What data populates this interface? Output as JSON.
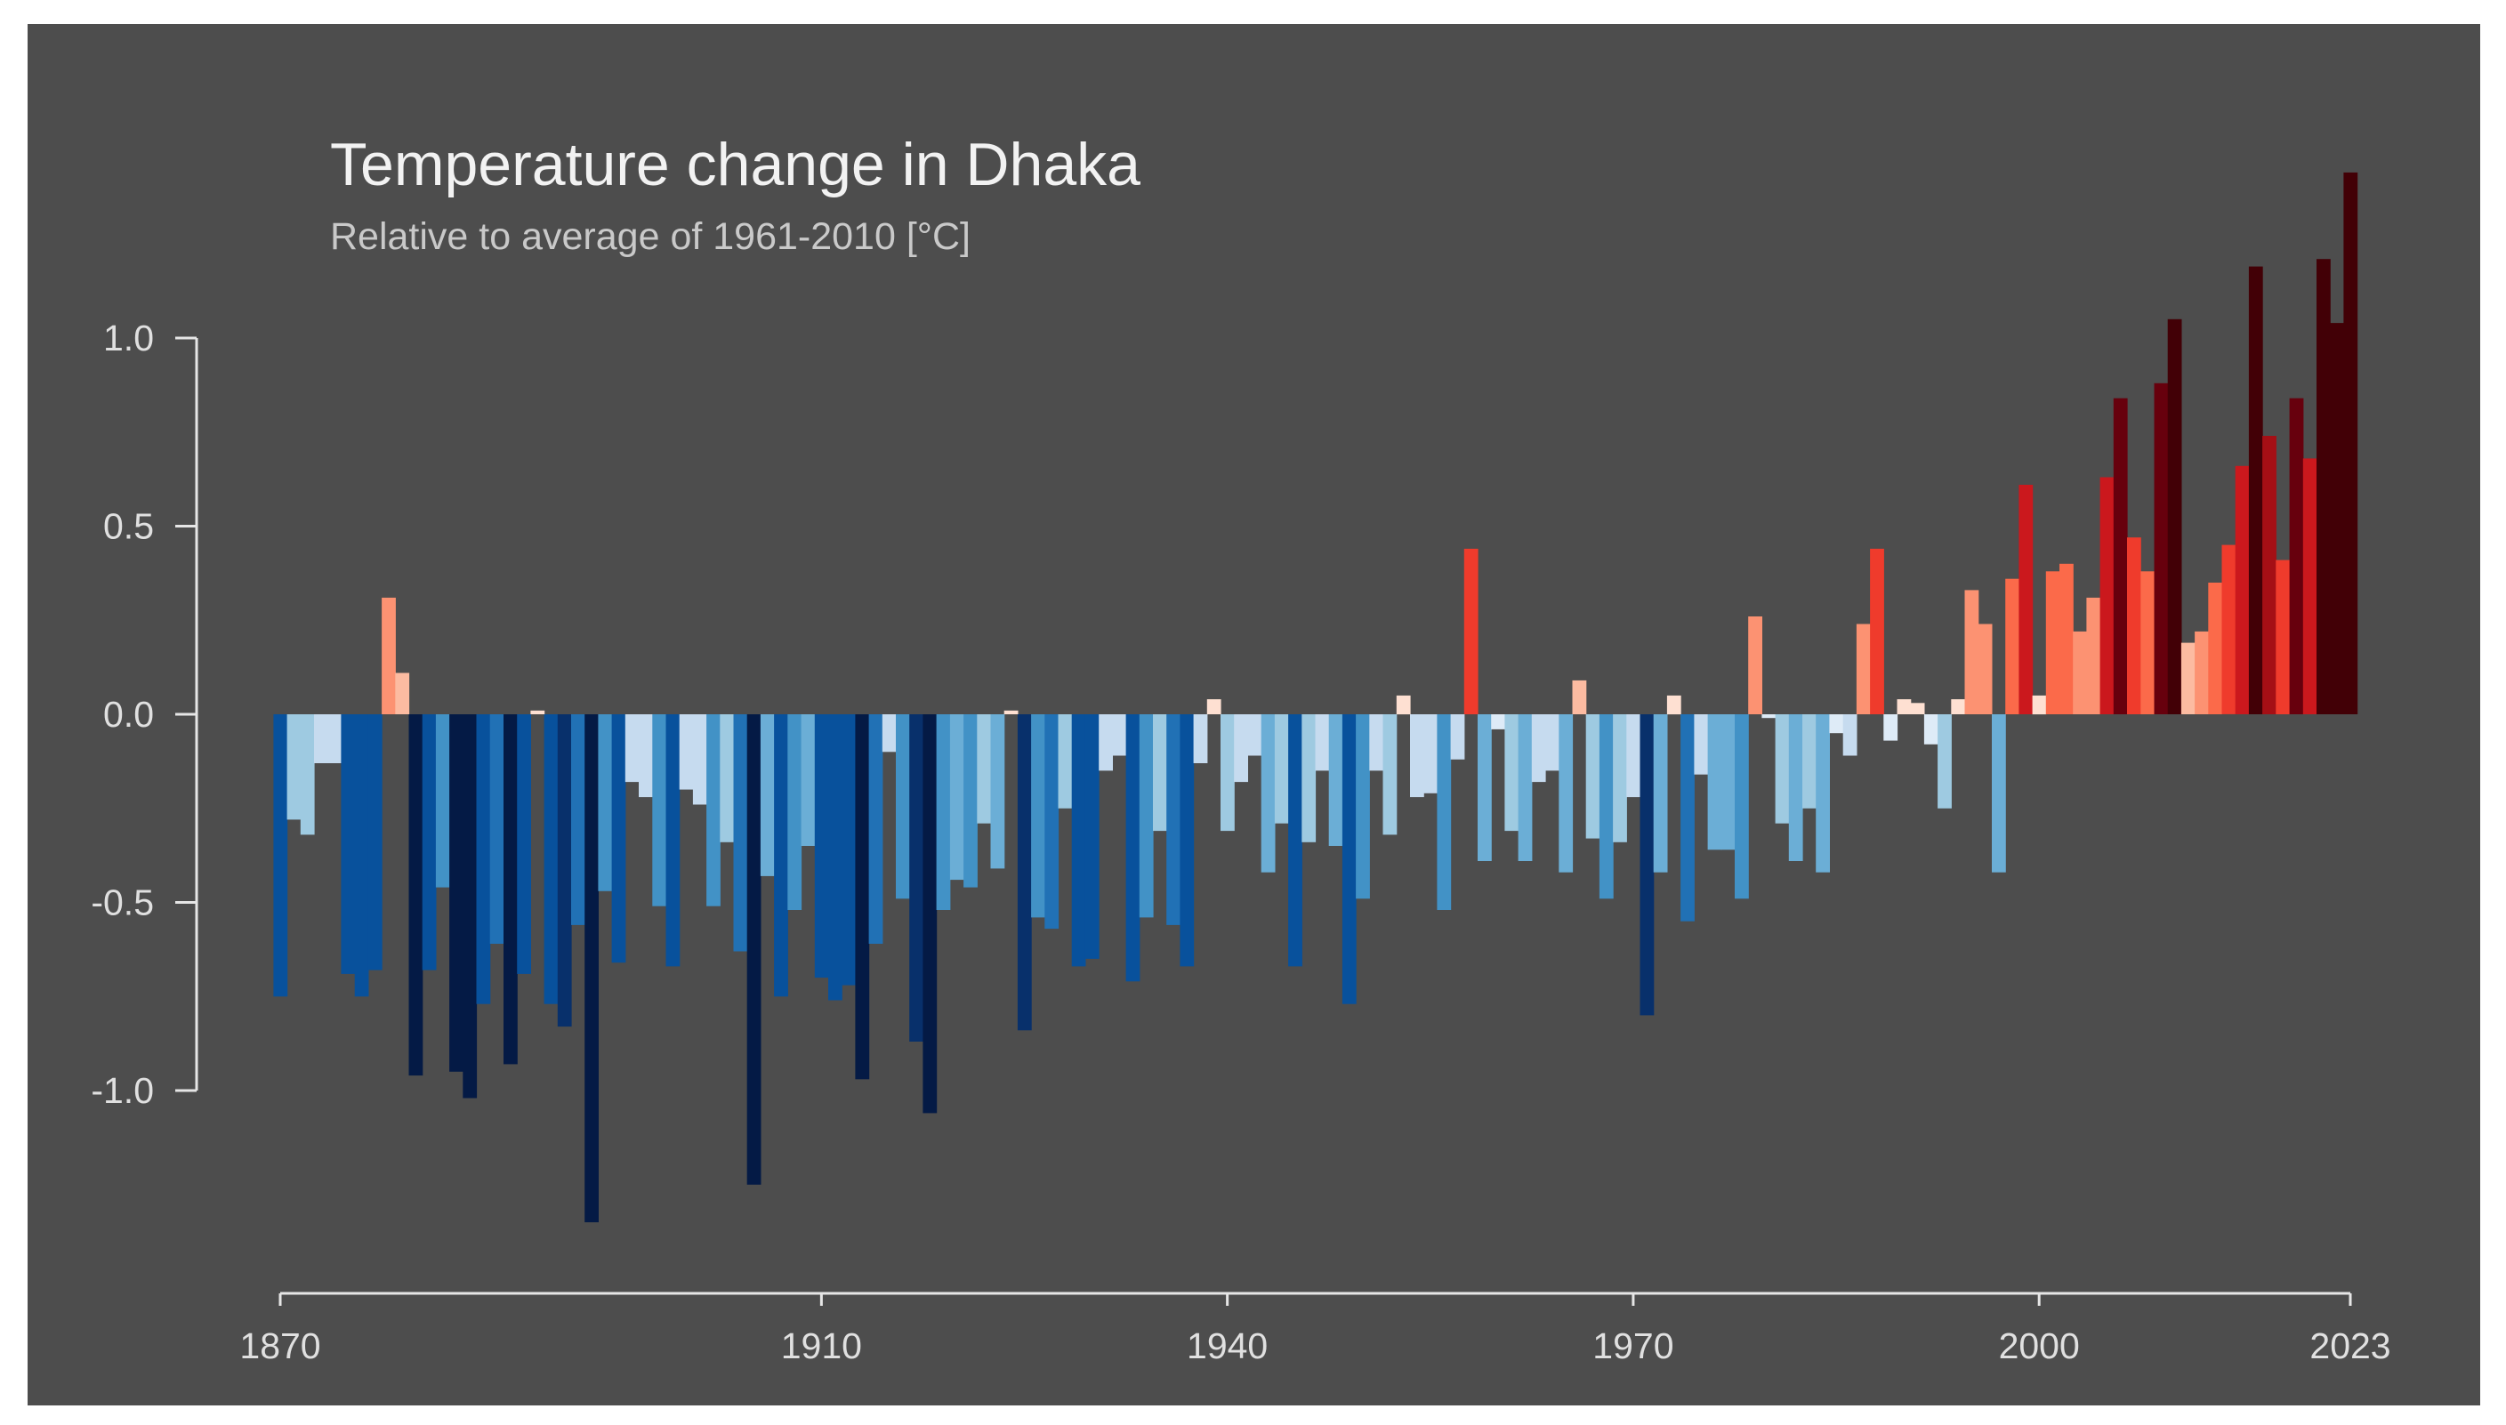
{
  "chart_data": {
    "type": "bar",
    "title": "Temperature change in Dhaka",
    "subtitle": "Relative to average of 1961-2010  [°C]",
    "xlabel": "",
    "ylabel": "",
    "x_start": 1870,
    "x_end": 2023,
    "xlim": [
      1870,
      2023
    ],
    "ylim": [
      -1.35,
      1.45
    ],
    "x_ticks": [
      1870,
      1910,
      1940,
      1970,
      2000,
      2023
    ],
    "y_ticks": [
      1.0,
      0.5,
      0.0,
      -0.5,
      -1.0
    ],
    "y_tick_labels": [
      "1.0",
      "0.5",
      "0.0",
      "-0.5",
      "-1.0"
    ],
    "grid": false,
    "legend": "none",
    "background_color": "#4d4d4d",
    "color_scale": {
      "negative": [
        {
          "max": -0.9,
          "color": "#041a45"
        },
        {
          "max": -0.78,
          "color": "#08306b"
        },
        {
          "max": -0.65,
          "color": "#08519c"
        },
        {
          "max": -0.55,
          "color": "#2171b5"
        },
        {
          "max": -0.45,
          "color": "#4292c6"
        },
        {
          "max": -0.35,
          "color": "#6baed6"
        },
        {
          "max": -0.25,
          "color": "#9ecae1"
        },
        {
          "max": -0.1,
          "color": "#c6dbef"
        },
        {
          "max": 0,
          "color": "#deebf7"
        }
      ],
      "positive": [
        {
          "max": 0.08,
          "color": "#fee0d2"
        },
        {
          "max": 0.2,
          "color": "#fcbba1"
        },
        {
          "max": 0.33,
          "color": "#fc9272"
        },
        {
          "max": 0.4,
          "color": "#fb6a4a"
        },
        {
          "max": 0.5,
          "color": "#ef3b2c"
        },
        {
          "max": 0.7,
          "color": "#cb181d"
        },
        {
          "max": 0.8,
          "color": "#a50f15"
        },
        {
          "max": 0.95,
          "color": "#67000d"
        },
        {
          "max": 99,
          "color": "#420006"
        }
      ]
    },
    "values": [
      -0.75,
      -0.28,
      -0.32,
      -0.13,
      -0.13,
      -0.69,
      -0.75,
      -0.68,
      0.31,
      0.11,
      -0.96,
      -0.68,
      -0.46,
      -0.95,
      -1.02,
      -0.77,
      -0.61,
      -0.93,
      -0.69,
      0.01,
      -0.77,
      -0.83,
      -0.56,
      -1.35,
      -0.47,
      -0.66,
      -0.18,
      -0.22,
      -0.51,
      -0.67,
      -0.2,
      -0.24,
      -0.51,
      -0.34,
      -0.63,
      -1.25,
      -0.43,
      -0.75,
      -0.52,
      -0.35,
      -0.7,
      -0.76,
      -0.72,
      -0.97,
      -0.61,
      -0.1,
      -0.49,
      -0.87,
      -1.06,
      -0.52,
      -0.44,
      -0.46,
      -0.29,
      -0.41,
      0.01,
      -0.84,
      -0.54,
      -0.57,
      -0.25,
      -0.67,
      -0.65,
      -0.15,
      -0.11,
      -0.71,
      -0.54,
      -0.31,
      -0.56,
      -0.67,
      -0.13,
      0.04,
      -0.31,
      -0.18,
      -0.11,
      -0.42,
      -0.29,
      -0.67,
      -0.34,
      -0.15,
      -0.35,
      -0.77,
      -0.49,
      -0.15,
      -0.32,
      0.05,
      -0.22,
      -0.21,
      -0.52,
      -0.12,
      0.44,
      -0.39,
      -0.04,
      -0.31,
      -0.39,
      -0.18,
      -0.15,
      -0.42,
      0.09,
      -0.33,
      -0.49,
      -0.34,
      -0.22,
      -0.8,
      -0.42,
      0.05,
      -0.55,
      -0.16,
      -0.36,
      -0.36,
      -0.49,
      0.26,
      -0.01,
      -0.29,
      -0.39,
      -0.25,
      -0.42,
      -0.05,
      -0.11,
      0.24,
      0.44,
      -0.07,
      0.04,
      0.03,
      -0.08,
      -0.25,
      0.04,
      0.33,
      0.24,
      -0.42,
      0.36,
      0.61,
      0.05,
      0.38,
      0.4,
      0.22,
      0.31,
      0.63,
      0.84,
      0.47,
      0.38,
      0.88,
      1.05,
      0.19,
      0.22,
      0.35,
      0.45,
      0.66,
      1.19,
      0.74,
      0.41,
      0.84,
      0.68,
      1.21,
      1.04,
      1.44
    ]
  }
}
